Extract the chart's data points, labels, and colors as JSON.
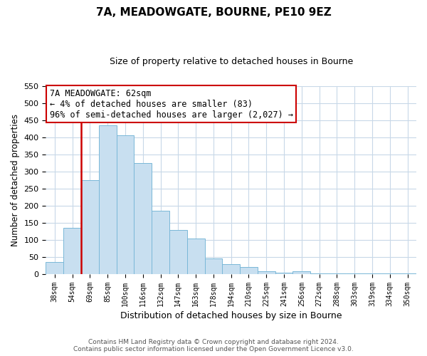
{
  "title": "7A, MEADOWGATE, BOURNE, PE10 9EZ",
  "subtitle": "Size of property relative to detached houses in Bourne",
  "xlabel": "Distribution of detached houses by size in Bourne",
  "ylabel": "Number of detached properties",
  "bar_labels": [
    "38sqm",
    "54sqm",
    "69sqm",
    "85sqm",
    "100sqm",
    "116sqm",
    "132sqm",
    "147sqm",
    "163sqm",
    "178sqm",
    "194sqm",
    "210sqm",
    "225sqm",
    "241sqm",
    "256sqm",
    "272sqm",
    "288sqm",
    "303sqm",
    "319sqm",
    "334sqm",
    "350sqm"
  ],
  "bar_values": [
    35,
    135,
    275,
    435,
    405,
    325,
    185,
    130,
    105,
    45,
    30,
    20,
    8,
    5,
    8,
    3,
    2,
    2,
    2,
    2,
    3
  ],
  "bar_color": "#c8dff0",
  "bar_edge_color": "#7ab8d8",
  "vline_color": "#cc0000",
  "vline_x": 1.5,
  "annotation_line1": "7A MEADOWGATE: 62sqm",
  "annotation_line2": "← 4% of detached houses are smaller (83)",
  "annotation_line3": "96% of semi-detached houses are larger (2,027) →",
  "annotation_box_color": "#ffffff",
  "annotation_box_edge_color": "#cc0000",
  "ylim": [
    0,
    550
  ],
  "yticks": [
    0,
    50,
    100,
    150,
    200,
    250,
    300,
    350,
    400,
    450,
    500,
    550
  ],
  "footer_line1": "Contains HM Land Registry data © Crown copyright and database right 2024.",
  "footer_line2": "Contains public sector information licensed under the Open Government Licence v3.0.",
  "background_color": "#ffffff",
  "grid_color": "#c8d8e8",
  "title_fontsize": 11,
  "subtitle_fontsize": 9
}
